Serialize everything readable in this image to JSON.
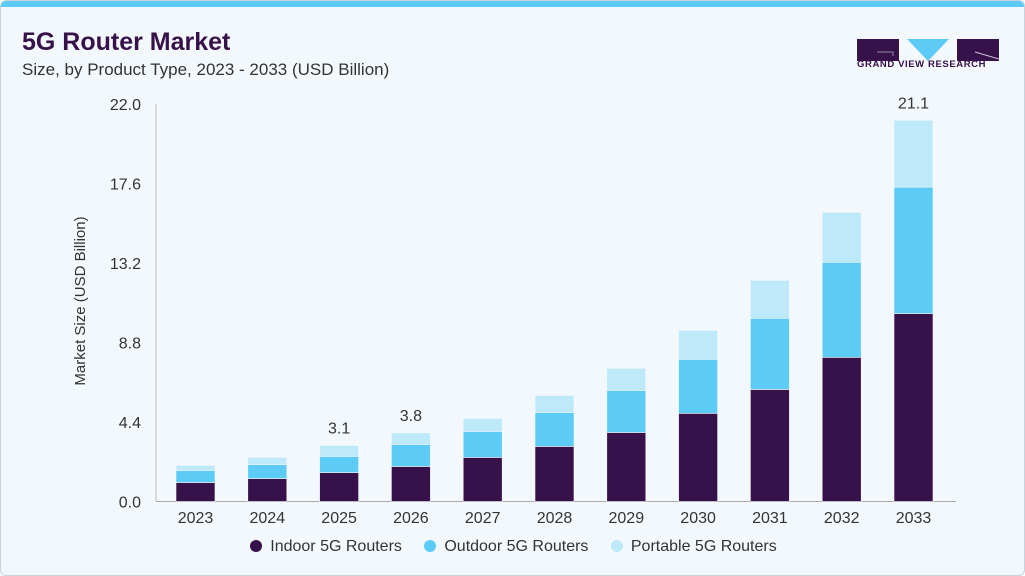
{
  "header": {
    "title": "5G Router Market",
    "subtitle": "Size, by Product Type, 2023 - 2033 (USD Billion)",
    "logo_text": "GRAND VIEW RESEARCH"
  },
  "colors": {
    "accent": "#5ccbf5",
    "indoor": "#371149",
    "outdoor": "#5ccbf5",
    "portable": "#bde9f9"
  },
  "chart_data": {
    "type": "bar",
    "stacked": true,
    "ylabel": "Market Size (USD Billion)",
    "ylim": [
      0,
      22
    ],
    "yticks": [
      "0.0",
      "4.4",
      "8.8",
      "13.2",
      "17.6",
      "22.0"
    ],
    "categories": [
      "2023",
      "2024",
      "2025",
      "2026",
      "2027",
      "2028",
      "2029",
      "2030",
      "2031",
      "2032",
      "2033"
    ],
    "series": [
      {
        "name": "Indoor 5G Routers",
        "color": "#371149",
        "values": [
          1.05,
          1.27,
          1.6,
          1.94,
          2.44,
          3.05,
          3.82,
          4.88,
          6.2,
          7.98,
          10.4
        ]
      },
      {
        "name": "Outdoor 5G Routers",
        "color": "#5ccbf5",
        "values": [
          0.67,
          0.78,
          0.9,
          1.22,
          1.44,
          1.88,
          2.33,
          2.99,
          3.94,
          5.26,
          7.0
        ]
      },
      {
        "name": "Portable 5G Routers",
        "color": "#bde9f9",
        "values": [
          0.28,
          0.39,
          0.6,
          0.64,
          0.72,
          0.94,
          1.22,
          1.6,
          2.1,
          2.76,
          3.7
        ]
      }
    ],
    "data_labels": {
      "2025": "3.1",
      "2026": "3.8",
      "2033": "21.1"
    },
    "legend": "bottom",
    "grid": false
  }
}
